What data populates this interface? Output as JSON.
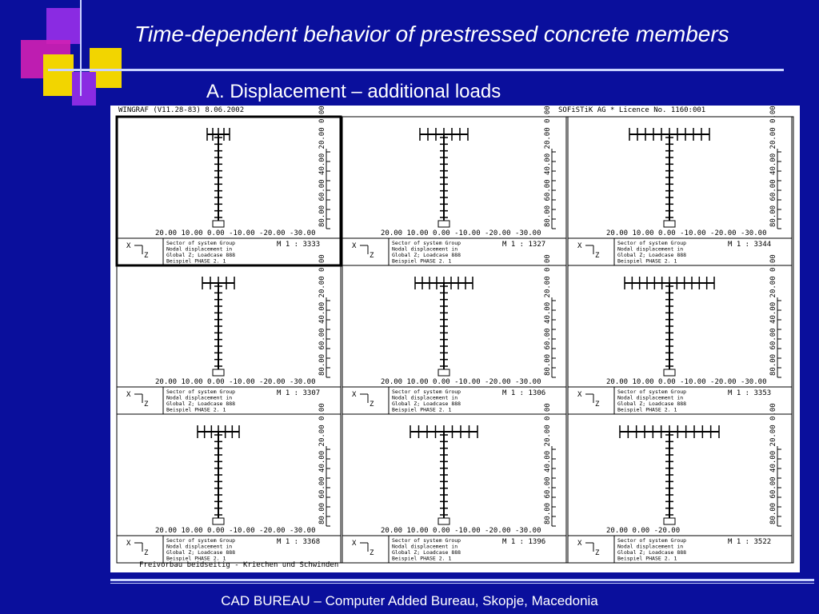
{
  "slide": {
    "title": "Time-dependent behavior of prestressed concrete members",
    "subtitle": "A.   Displacement – additional loads",
    "footer": "CAD BUREAU – Computer Added Bureau, Skopje, Macedonia",
    "colors": {
      "background": "#0a0f9c",
      "accent_magenta": "#d21fb4",
      "accent_yellow": "#f2d500",
      "accent_purple": "#8a2be2"
    }
  },
  "figure": {
    "header_left": "WINGRAF (V11.28-83)  8.06.2002",
    "header_right": "SOFiSTiK AG   *   Licence No. 1160:001",
    "footer_caption": "Freivorbau beidseitig - Kriechen und Schwinden",
    "panels": [
      {
        "x_axis": "20.00 10.00  0.00 -10.00 -20.00 -30.00",
        "y_axis": "80.00 60.00 40.00 20.00 0.00",
        "sheet": "M 1 : 3333"
      },
      {
        "x_axis": "20.00 10.00  0.00 -10.00 -20.00 -30.00",
        "y_axis": "80.00 60.00 40.00 20.00 0.00",
        "sheet": "M 1 : 1327"
      },
      {
        "x_axis": "20.00 10.00  0.00 -10.00 -20.00 -30.00",
        "y_axis": "80.00 60.00 40.00 20.00 0.00",
        "sheet": "M 1 : 3344"
      },
      {
        "x_axis": "20.00 10.00  0.00 -10.00 -20.00 -30.00",
        "y_axis": "80.00 60.00 40.00 20.00 0.00",
        "sheet": "M 1 : 3307"
      },
      {
        "x_axis": "20.00 10.00  0.00 -10.00 -20.00 -30.00",
        "y_axis": "80.00 60.00 40.00 20.00 0.00",
        "sheet": "M 1 : 1306"
      },
      {
        "x_axis": "20.00 10.00  0.00 -10.00 -20.00 -30.00",
        "y_axis": "80.00 60.00 40.00 20.00 0.00",
        "sheet": "M 1 : 3353"
      },
      {
        "x_axis": "20.00 10.00  0.00 -10.00 -20.00 -30.00",
        "y_axis": "80.00 60.00 40.00 20.00 0.00",
        "sheet": "M 1 : 3368"
      },
      {
        "x_axis": "20.00 10.00  0.00 -10.00 -20.00 -30.00",
        "y_axis": "80.00 60.00 40.00 20.00 0.00",
        "sheet": "M 1 : 1396"
      },
      {
        "x_axis": "20.00      0.00     -20.00",
        "y_axis": "80.00 60.00 40.00 20.00 0.00",
        "sheet": "M 1 : 3522"
      }
    ],
    "info_lines": [
      "Sector of system Group",
      "Nodal displacement in",
      "Global Z; Loadcase 888",
      "Beispiel PHASE 2. 1"
    ]
  }
}
